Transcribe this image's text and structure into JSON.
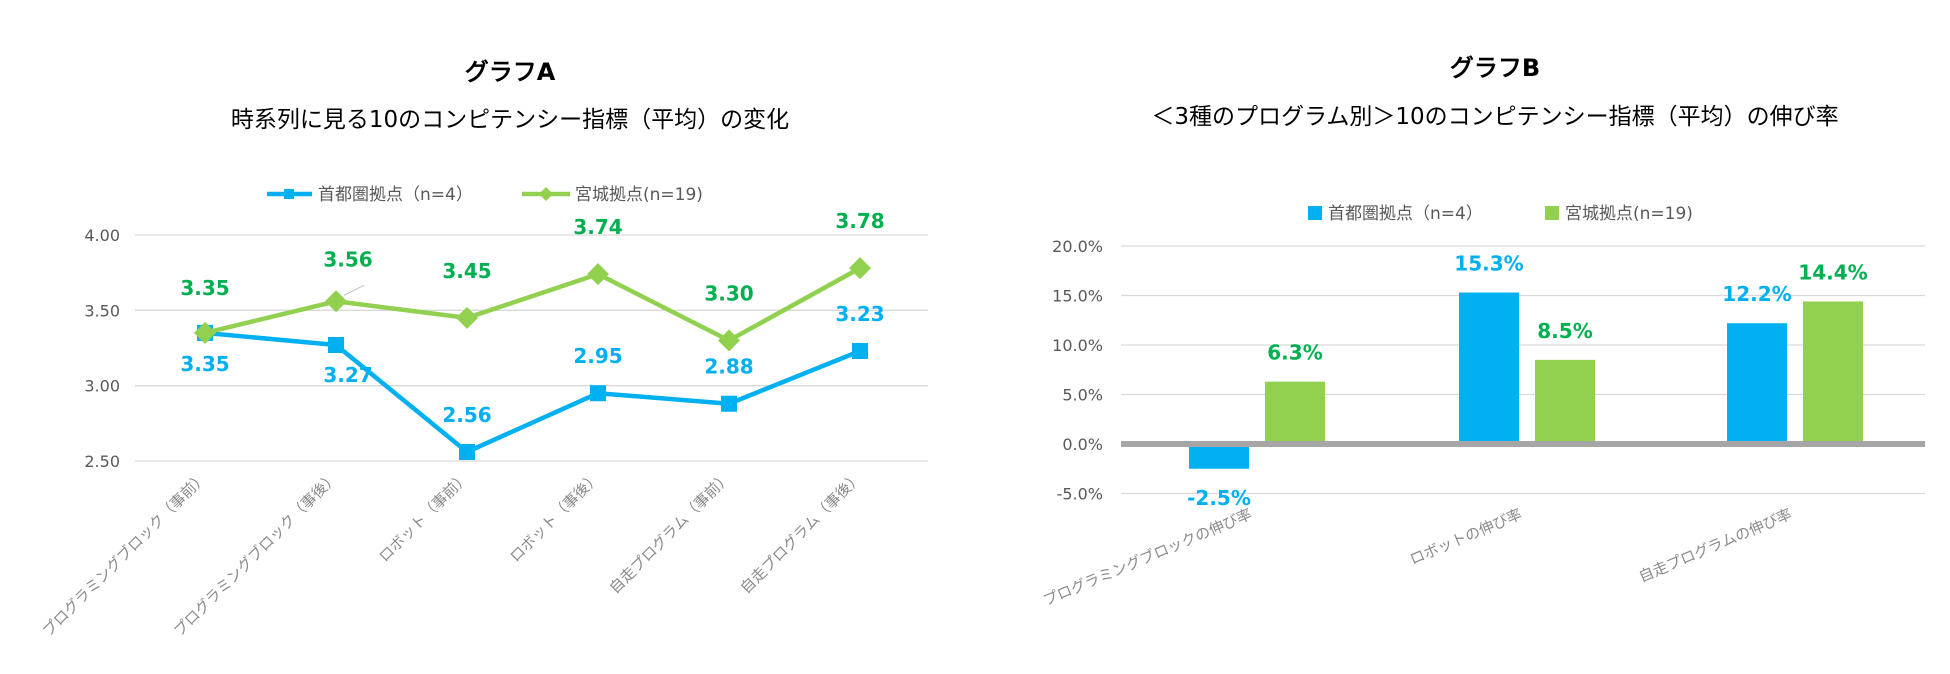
{
  "colors": {
    "blue": "#00b0f0",
    "green": "#92d050",
    "green_label": "#00b050",
    "zero_line": "#a6a6a6"
  },
  "chart_data": [
    {
      "type": "line",
      "title": "グラフA",
      "subtitle": "時系列に見る10のコンピテンシー指標（平均）の変化",
      "categories": [
        "プログラミングブロック（事前）",
        "プログラミングブロック（事後）",
        "ロボット（事前）",
        "ロボット（事後）",
        "自走プログラム（事前）",
        "自走プログラム（事後）"
      ],
      "yticks": [
        "4.00",
        "3.50",
        "3.00",
        "2.50"
      ],
      "ylim": [
        2.5,
        4.0
      ],
      "grid": true,
      "legend_position": "top",
      "series": [
        {
          "name": "首都圏拠点（n=4）",
          "values": [
            3.35,
            3.27,
            2.56,
            2.95,
            2.88,
            3.23
          ],
          "labels": [
            "3.35",
            "3.27",
            "2.56",
            "2.95",
            "2.88",
            "3.23"
          ]
        },
        {
          "name": "宮城拠点(n=19)",
          "values": [
            3.35,
            3.56,
            3.45,
            3.74,
            3.3,
            3.78
          ],
          "labels": [
            "3.35",
            "3.56",
            "3.45",
            "3.74",
            "3.30",
            "3.78"
          ]
        }
      ]
    },
    {
      "type": "bar",
      "title": "グラフB",
      "subtitle": "＜3種のプログラム別＞10のコンピテンシー指標（平均）の伸び率",
      "categories": [
        "プログラミングブロックの伸び率",
        "ロボットの伸び率",
        "自走プログラムの伸び率"
      ],
      "yticks": [
        "20.0%",
        "15.0%",
        "10.0%",
        "5.0%",
        "0.0%",
        "-5.0%"
      ],
      "ylim": [
        -5,
        20
      ],
      "grid": true,
      "legend_position": "top",
      "series": [
        {
          "name": "首都圏拠点（n=4）",
          "values": [
            -2.5,
            15.3,
            12.2
          ],
          "labels": [
            "-2.5%",
            "15.3%",
            "12.2%"
          ]
        },
        {
          "name": "宮城拠点(n=19)",
          "values": [
            6.3,
            8.5,
            14.4
          ],
          "labels": [
            "6.3%",
            "8.5%",
            "14.4%"
          ]
        }
      ]
    }
  ]
}
